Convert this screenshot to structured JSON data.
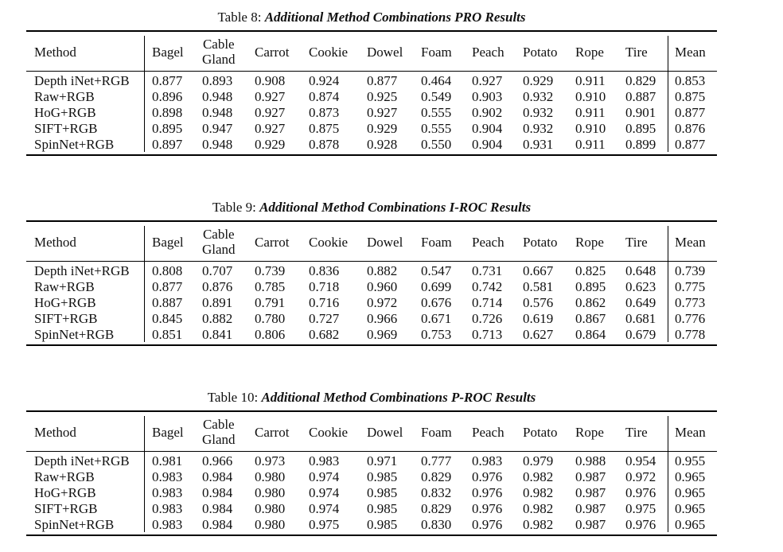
{
  "columns": [
    "Method",
    "Bagel",
    "Cable Gland",
    "Carrot",
    "Cookie",
    "Dowel",
    "Foam",
    "Peach",
    "Potato",
    "Rope",
    "Tire",
    "Mean"
  ],
  "column_lines": {
    "cable_gland_1": "Cable",
    "cable_gland_2": "Gland"
  },
  "tables": [
    {
      "label": "Table 8:",
      "title": "Additional Method Combinations PRO Results",
      "rows": [
        [
          "Depth iNet+RGB",
          "0.877",
          "0.893",
          "0.908",
          "0.924",
          "0.877",
          "0.464",
          "0.927",
          "0.929",
          "0.911",
          "0.829",
          "0.853"
        ],
        [
          "Raw+RGB",
          "0.896",
          "0.948",
          "0.927",
          "0.874",
          "0.925",
          "0.549",
          "0.903",
          "0.932",
          "0.910",
          "0.887",
          "0.875"
        ],
        [
          "HoG+RGB",
          "0.898",
          "0.948",
          "0.927",
          "0.873",
          "0.927",
          "0.555",
          "0.902",
          "0.932",
          "0.911",
          "0.901",
          "0.877"
        ],
        [
          "SIFT+RGB",
          "0.895",
          "0.947",
          "0.927",
          "0.875",
          "0.929",
          "0.555",
          "0.904",
          "0.932",
          "0.910",
          "0.895",
          "0.876"
        ],
        [
          "SpinNet+RGB",
          "0.897",
          "0.948",
          "0.929",
          "0.878",
          "0.928",
          "0.550",
          "0.904",
          "0.931",
          "0.911",
          "0.899",
          "0.877"
        ]
      ]
    },
    {
      "label": "Table 9:",
      "title": "Additional Method Combinations I-ROC Results",
      "rows": [
        [
          "Depth iNet+RGB",
          "0.808",
          "0.707",
          "0.739",
          "0.836",
          "0.882",
          "0.547",
          "0.731",
          "0.667",
          "0.825",
          "0.648",
          "0.739"
        ],
        [
          "Raw+RGB",
          "0.877",
          "0.876",
          "0.785",
          "0.718",
          "0.960",
          "0.699",
          "0.742",
          "0.581",
          "0.895",
          "0.623",
          "0.775"
        ],
        [
          "HoG+RGB",
          "0.887",
          "0.891",
          "0.791",
          "0.716",
          "0.972",
          "0.676",
          "0.714",
          "0.576",
          "0.862",
          "0.649",
          "0.773"
        ],
        [
          "SIFT+RGB",
          "0.845",
          "0.882",
          "0.780",
          "0.727",
          "0.966",
          "0.671",
          "0.726",
          "0.619",
          "0.867",
          "0.681",
          "0.776"
        ],
        [
          "SpinNet+RGB",
          "0.851",
          "0.841",
          "0.806",
          "0.682",
          "0.969",
          "0.753",
          "0.713",
          "0.627",
          "0.864",
          "0.679",
          "0.778"
        ]
      ]
    },
    {
      "label": "Table 10:",
      "title": "Additional Method Combinations P-ROC Results",
      "rows": [
        [
          "Depth iNet+RGB",
          "0.981",
          "0.966",
          "0.973",
          "0.983",
          "0.971",
          "0.777",
          "0.983",
          "0.979",
          "0.988",
          "0.954",
          "0.955"
        ],
        [
          "Raw+RGB",
          "0.983",
          "0.984",
          "0.980",
          "0.974",
          "0.985",
          "0.829",
          "0.976",
          "0.982",
          "0.987",
          "0.972",
          "0.965"
        ],
        [
          "HoG+RGB",
          "0.983",
          "0.984",
          "0.980",
          "0.974",
          "0.985",
          "0.832",
          "0.976",
          "0.982",
          "0.987",
          "0.976",
          "0.965"
        ],
        [
          "SIFT+RGB",
          "0.983",
          "0.984",
          "0.980",
          "0.974",
          "0.985",
          "0.829",
          "0.976",
          "0.982",
          "0.987",
          "0.975",
          "0.965"
        ],
        [
          "SpinNet+RGB",
          "0.983",
          "0.984",
          "0.980",
          "0.975",
          "0.985",
          "0.830",
          "0.976",
          "0.982",
          "0.987",
          "0.976",
          "0.965"
        ]
      ]
    }
  ]
}
